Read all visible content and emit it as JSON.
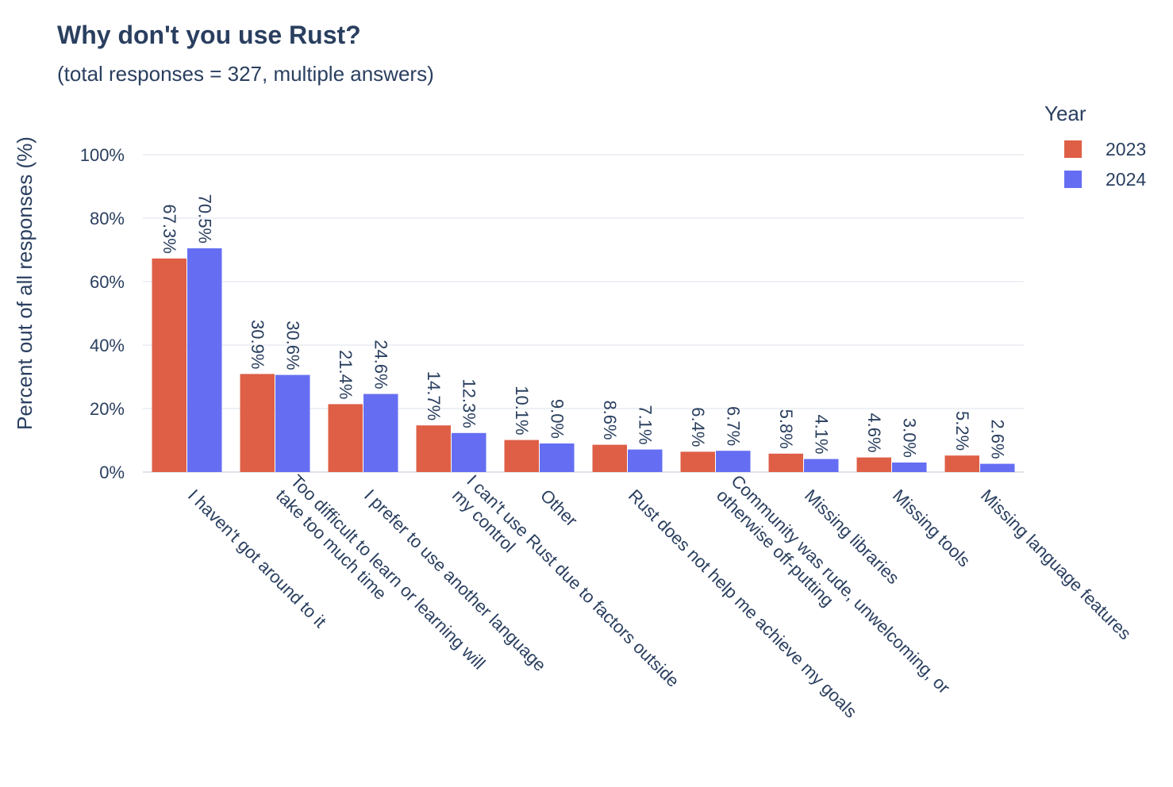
{
  "chart_data": {
    "type": "bar",
    "title": "Why don't you use Rust?",
    "subtitle": "(total responses = 327, multiple answers)",
    "ylabel": "Percent out of all responses (%)",
    "xlabel": "",
    "ylim": [
      0,
      100
    ],
    "yticks": [
      "0%",
      "20%",
      "40%",
      "60%",
      "80%",
      "100%"
    ],
    "grid": true,
    "legend_title": "Year",
    "legend_position": "top-right",
    "categories": [
      "I haven't got around to it",
      "Too difficult to learn or learning will take too much time",
      "I prefer to use another language",
      "I can't use Rust due to factors outside my control",
      "Other",
      "Rust does not help me achieve my goals",
      "Community was rude, unwelcoming, or otherwise off-putting",
      "Missing libraries",
      "Missing tools",
      "Missing language features"
    ],
    "category_label_lines": [
      [
        "I haven't got around to it"
      ],
      [
        "Too difficult to learn or learning will",
        "take too much time"
      ],
      [
        "I prefer to use another language"
      ],
      [
        "I can't use Rust due to factors outside",
        "my control"
      ],
      [
        "Other"
      ],
      [
        "Rust does not help me achieve my goals"
      ],
      [
        "Community was rude, unwelcoming, or",
        "otherwise off-putting"
      ],
      [
        "Missing libraries"
      ],
      [
        "Missing tools"
      ],
      [
        "Missing language features"
      ]
    ],
    "series": [
      {
        "name": "2023",
        "color": "#de5f46",
        "values": [
          67.3,
          30.9,
          21.4,
          14.7,
          10.1,
          8.6,
          6.4,
          5.8,
          4.6,
          5.2
        ],
        "labels": [
          "67.3%",
          "30.9%",
          "21.4%",
          "14.7%",
          "10.1%",
          "8.6%",
          "6.4%",
          "5.8%",
          "4.6%",
          "5.2%"
        ]
      },
      {
        "name": "2024",
        "color": "#656ef2",
        "values": [
          70.5,
          30.6,
          24.6,
          12.3,
          9.0,
          7.1,
          6.7,
          4.1,
          3.0,
          2.6
        ],
        "labels": [
          "70.5%",
          "30.6%",
          "24.6%",
          "12.3%",
          "9.0%",
          "7.1%",
          "6.7%",
          "4.1%",
          "3.0%",
          "2.6%"
        ]
      }
    ]
  }
}
